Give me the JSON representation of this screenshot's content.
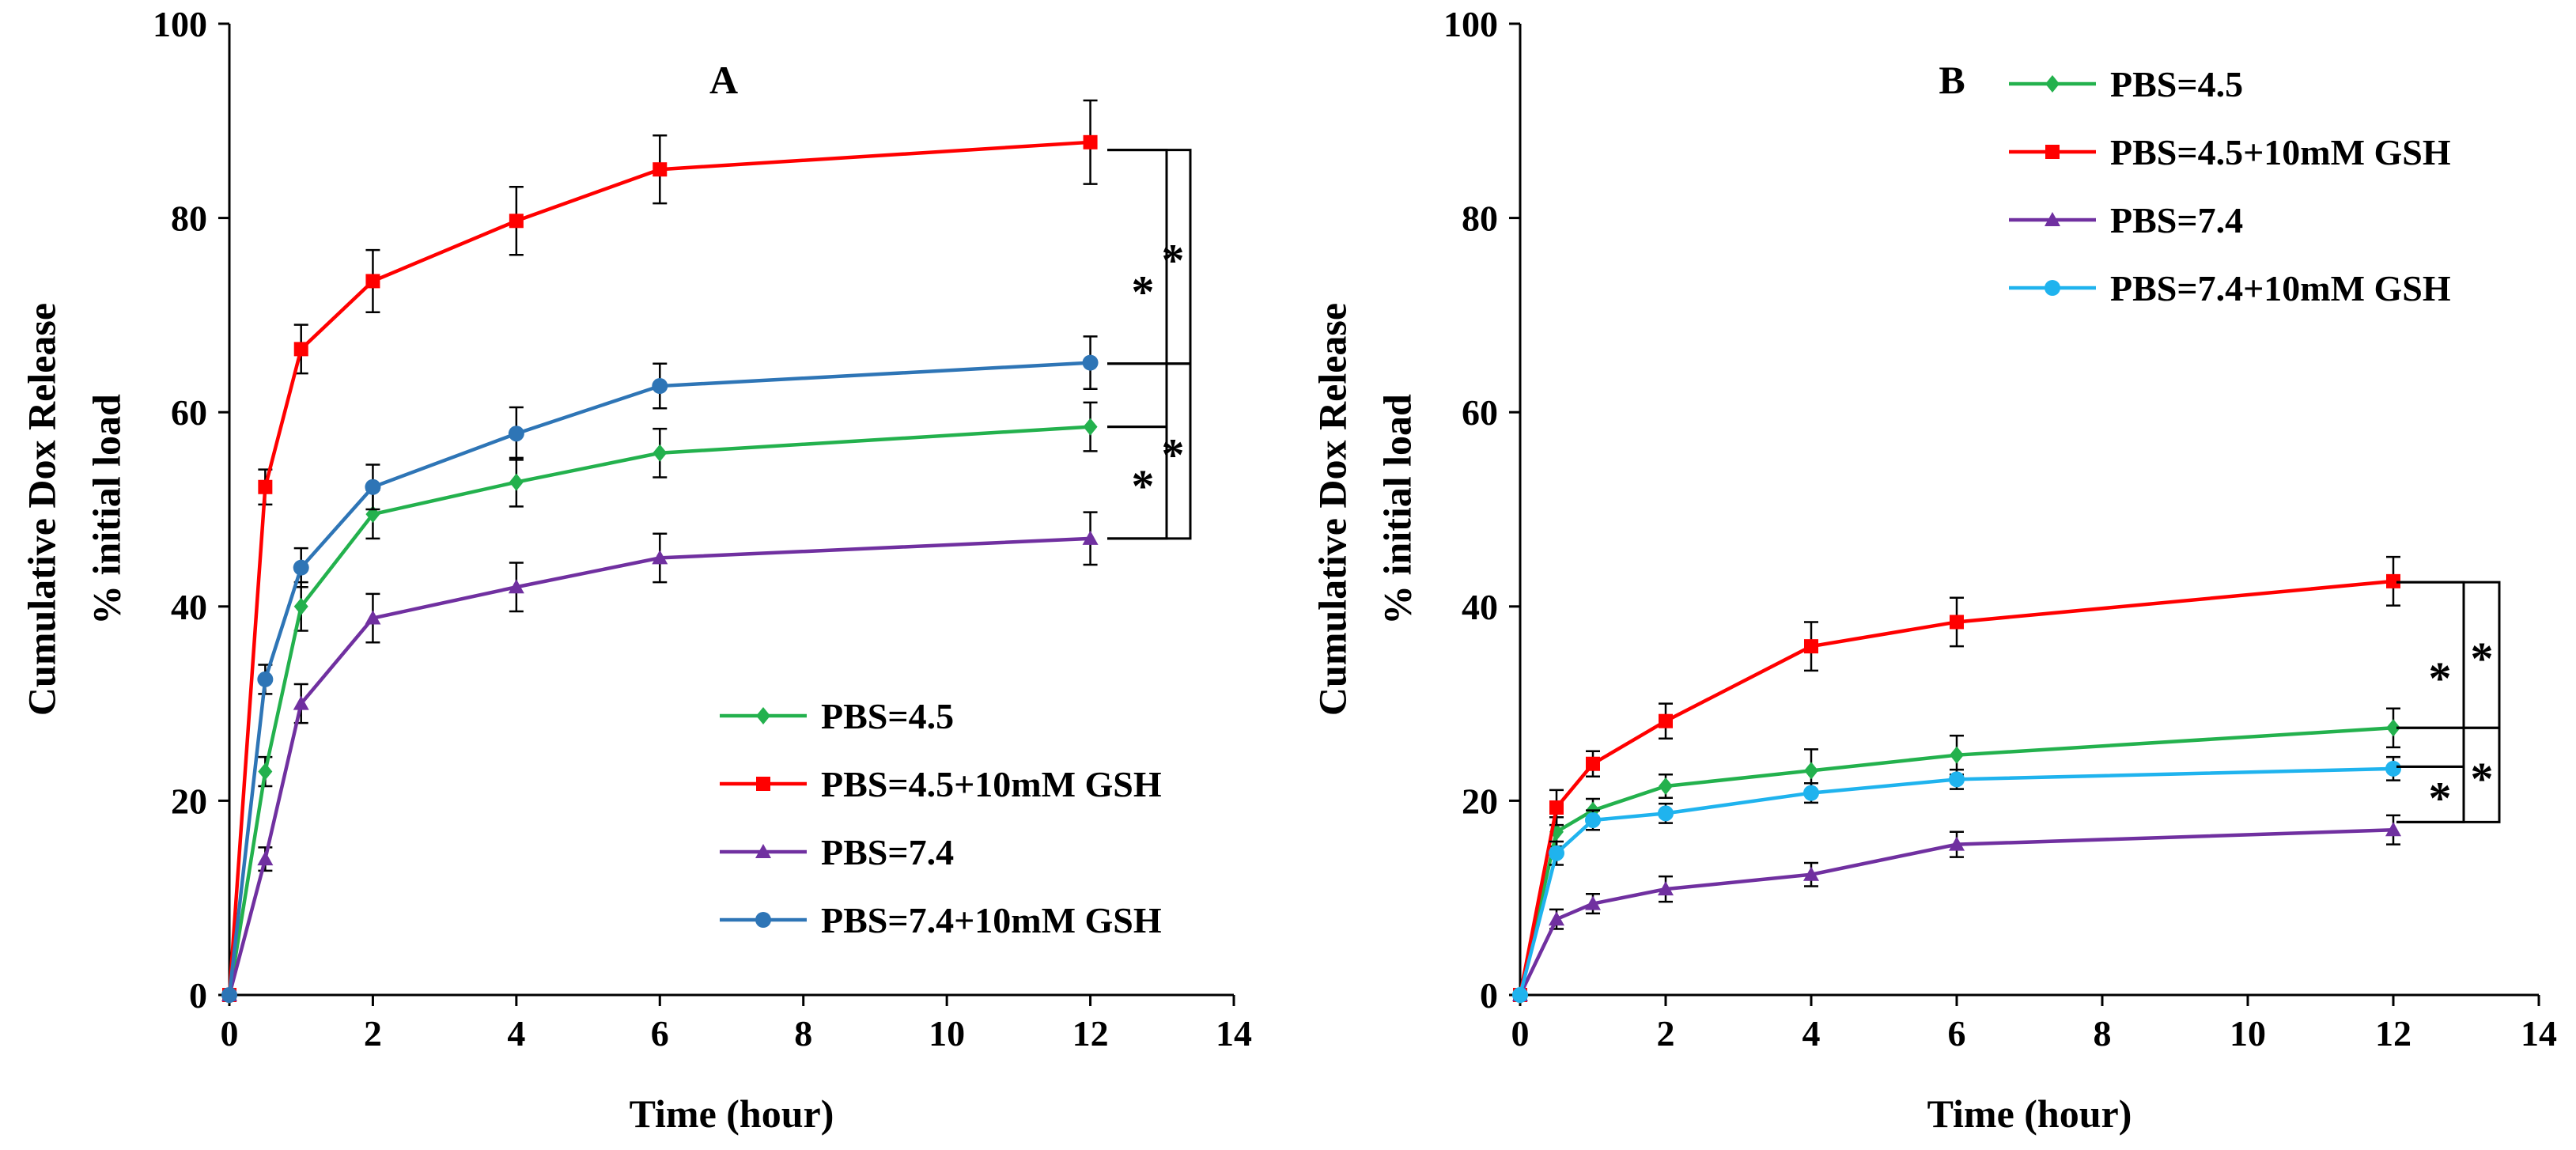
{
  "chart_data": [
    {
      "type": "line",
      "panel": "A",
      "xlabel": "Time (hour)",
      "ylabel": [
        "Cumulative Dox Release",
        "% initial load"
      ],
      "xlim": [
        0,
        14
      ],
      "ylim": [
        0,
        100
      ],
      "xticks": [
        0,
        2,
        4,
        6,
        8,
        10,
        12,
        14
      ],
      "yticks": [
        0,
        20,
        40,
        60,
        80,
        100
      ],
      "grid": false,
      "legend_position": "bottom-right",
      "x": [
        0,
        0.5,
        1,
        2,
        4,
        6,
        12
      ],
      "series": [
        {
          "name": "PBS=4.5",
          "color": "#23b14d",
          "marker": "diamond",
          "values": [
            0,
            23,
            40,
            49.5,
            52.8,
            55.8,
            58.5
          ],
          "errors": [
            0,
            1.5,
            2.5,
            2.5,
            2.5,
            2.5,
            2.5
          ]
        },
        {
          "name": "PBS=4.5+10mM GSH",
          "color": "#ff0000",
          "marker": "square",
          "values": [
            0,
            52.3,
            66.5,
            73.5,
            79.7,
            85,
            87.8
          ],
          "errors": [
            0,
            1.8,
            2.5,
            3.2,
            3.5,
            3.5,
            4.3
          ]
        },
        {
          "name": "PBS=7.4",
          "color": "#7030a0",
          "marker": "triangle",
          "values": [
            0,
            14,
            30,
            38.8,
            42,
            45,
            47
          ],
          "errors": [
            0,
            1.2,
            2,
            2.5,
            2.5,
            2.5,
            2.7
          ]
        },
        {
          "name": "PBS=7.4+10mM GSH",
          "color": "#2e75b6",
          "marker": "circle",
          "values": [
            0,
            32.5,
            44,
            52.3,
            57.8,
            62.7,
            65.1
          ],
          "errors": [
            0,
            1.5,
            2,
            2.3,
            2.7,
            2.3,
            2.7
          ]
        }
      ],
      "significance": [
        {
          "from": 87,
          "to": 58.5,
          "label": "*"
        },
        {
          "from": 87,
          "to": 65,
          "label": "*"
        },
        {
          "from": 58.5,
          "to": 47,
          "label": "*"
        },
        {
          "from": 65,
          "to": 47,
          "label": "*"
        }
      ]
    },
    {
      "type": "line",
      "panel": "B",
      "xlabel": "Time (hour)",
      "ylabel": [
        "Cumulative Dox Release",
        "% initial load"
      ],
      "xlim": [
        0,
        14
      ],
      "ylim": [
        0,
        100
      ],
      "xticks": [
        0,
        2,
        4,
        6,
        8,
        10,
        12,
        14
      ],
      "yticks": [
        0,
        20,
        40,
        60,
        80,
        100
      ],
      "grid": false,
      "legend_position": "top-right",
      "x": [
        0,
        0.5,
        1,
        2,
        4,
        6,
        12
      ],
      "series": [
        {
          "name": "PBS=4.5",
          "color": "#23b14d",
          "marker": "diamond",
          "values": [
            0,
            16.8,
            19,
            21.5,
            23.1,
            24.7,
            27.5
          ],
          "errors": [
            0,
            1.5,
            1.2,
            1.2,
            2.2,
            2,
            2
          ]
        },
        {
          "name": "PBS=4.5+10mM GSH",
          "color": "#ff0000",
          "marker": "square",
          "values": [
            0,
            19.3,
            23.8,
            28.2,
            35.9,
            38.4,
            42.6
          ],
          "errors": [
            0,
            1.8,
            1.3,
            1.8,
            2.5,
            2.5,
            2.5
          ]
        },
        {
          "name": "PBS=7.4",
          "color": "#7030a0",
          "marker": "triangle",
          "values": [
            0,
            7.8,
            9.4,
            10.9,
            12.4,
            15.5,
            17
          ],
          "errors": [
            0,
            1,
            1,
            1.3,
            1.2,
            1.3,
            1.5
          ]
        },
        {
          "name": "PBS=7.4+10mM GSH",
          "color": "#1fb3ee",
          "marker": "circle",
          "values": [
            0,
            14.6,
            18,
            18.7,
            20.8,
            22.2,
            23.3
          ],
          "errors": [
            0,
            1.2,
            1,
            1,
            1,
            1,
            1.2
          ]
        }
      ],
      "significance": [
        {
          "from": 42.5,
          "to": 23.5,
          "label": "*"
        },
        {
          "from": 42.5,
          "to": 27.5,
          "label": "*"
        },
        {
          "from": 23.5,
          "to": 17.8,
          "label": "*"
        },
        {
          "from": 27.5,
          "to": 17.8,
          "label": "*"
        }
      ]
    }
  ]
}
